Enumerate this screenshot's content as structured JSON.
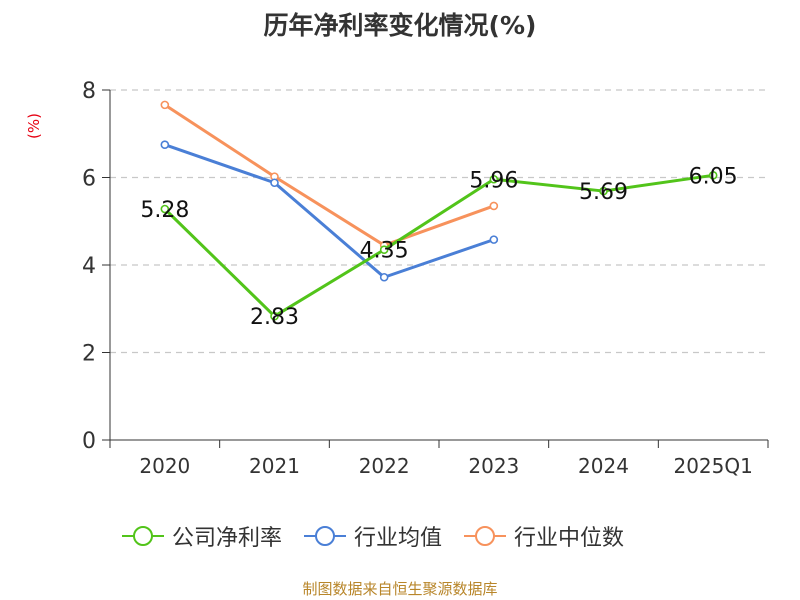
{
  "title": "历年净利率变化情况(%)",
  "source": "制图数据来自恒生聚源数据库",
  "chart_data": {
    "type": "line",
    "ylabel": "(%)",
    "ylim": [
      0,
      8
    ],
    "yticks": [
      0,
      2,
      4,
      6,
      8
    ],
    "categories": [
      "2020",
      "2021",
      "2022",
      "2023",
      "2024",
      "2025Q1"
    ],
    "grid": true,
    "legend_position": "bottom",
    "series": [
      {
        "name": "公司净利率",
        "color": "#52c41a",
        "values": [
          5.28,
          2.83,
          4.35,
          5.96,
          5.69,
          6.05
        ],
        "labels": true
      },
      {
        "name": "行业均值",
        "color": "#4a7fd6",
        "values": [
          6.75,
          5.88,
          3.72,
          4.58,
          null,
          null
        ],
        "labels": false
      },
      {
        "name": "行业中位数",
        "color": "#f7925c",
        "values": [
          7.66,
          6.02,
          4.45,
          5.35,
          null,
          null
        ],
        "labels": false
      }
    ]
  }
}
